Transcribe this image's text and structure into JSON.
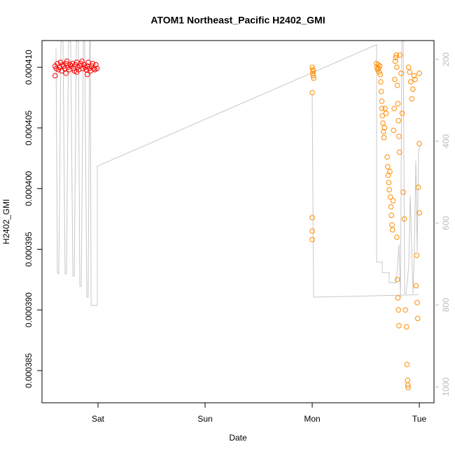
{
  "chart_data": {
    "type": "scatter",
    "title": "ATOM1 Northeast_Pacific H2402_GMI",
    "x_label": "Date",
    "y_label": "H2402_GMI",
    "xlim": [
      -0.523,
      3.137
    ],
    "xticks": [
      {
        "value": 0,
        "label": "Sat"
      },
      {
        "value": 1,
        "label": "Sun"
      },
      {
        "value": 2,
        "label": "Mon"
      },
      {
        "value": 3,
        "label": "Tue"
      }
    ],
    "ylim": [
      0.00038235,
      0.0004122
    ],
    "yticks": [
      0.000385,
      {
        "value": 0.00039,
        "label": "0.000390"
      },
      0.000395,
      {
        "value": 0.0004,
        "label": "0.000400"
      },
      0.000405,
      {
        "value": 0.00041,
        "label": "0.000410"
      }
    ],
    "y2lim": [
      154,
      1039
    ],
    "y2_reversed": true,
    "y2ticks": [
      200,
      400,
      600,
      800,
      1000
    ],
    "y2_color": "#bbbbbb",
    "series": [
      {
        "name": "red",
        "color": "#ff0000",
        "x": [
          -0.4,
          -0.39,
          -0.38,
          -0.37,
          -0.36,
          -0.35,
          -0.34,
          -0.33,
          -0.32,
          -0.31,
          -0.3,
          -0.29,
          -0.28,
          -0.27,
          -0.26,
          -0.25,
          -0.24,
          -0.23,
          -0.22,
          -0.21,
          -0.2,
          -0.19,
          -0.18,
          -0.17,
          -0.16,
          -0.15,
          -0.14,
          -0.13,
          -0.12,
          -0.11,
          -0.1,
          -0.09,
          -0.08,
          -0.07,
          -0.06,
          -0.05,
          -0.04,
          -0.03,
          -0.02,
          -0.01,
          -0.4,
          -0.3,
          -0.2,
          -0.1
        ],
        "values": [
          0.0004101,
          0.0004099,
          0.0004103,
          0.0004098,
          0.00041,
          0.0004104,
          0.0004097,
          0.0004102,
          0.0004101,
          0.0004099,
          0.0004103,
          0.0004105,
          0.00041,
          0.0004098,
          0.0004102,
          0.0004101,
          0.0004103,
          0.0004099,
          0.0004097,
          0.0004102,
          0.0004104,
          0.00041,
          0.0004098,
          0.0004101,
          0.0004103,
          0.0004105,
          0.0004099,
          0.0004102,
          0.00041,
          0.0004098,
          0.0004101,
          0.0004104,
          0.0004099,
          0.0004097,
          0.0004101,
          0.0004103,
          0.0004099,
          0.0004098,
          0.0004102,
          0.0004099,
          0.0004093,
          0.0004095,
          0.0004096,
          0.0004094
        ]
      },
      {
        "name": "orange",
        "color": "#ff8c00",
        "x": [
          2.0,
          2.005,
          2.01,
          2.005,
          2.01,
          2.013,
          2.0,
          2.0,
          2.0,
          2.0,
          2.6,
          2.605,
          2.61,
          2.615,
          2.62,
          2.625,
          2.63,
          2.635,
          2.64,
          2.645,
          2.65,
          2.65,
          2.655,
          2.66,
          2.665,
          2.67,
          2.675,
          2.68,
          2.69,
          2.7,
          2.705,
          2.71,
          2.715,
          2.72,
          2.725,
          2.73,
          2.735,
          2.74,
          2.745,
          2.75,
          2.755,
          2.76,
          2.765,
          2.77,
          2.775,
          2.78,
          2.785,
          2.79,
          2.795,
          2.8,
          2.805,
          2.81,
          2.815,
          2.79,
          2.795,
          2.8,
          2.805,
          2.81,
          2.82,
          2.83,
          2.84,
          2.85,
          2.86,
          2.87,
          2.88,
          2.885,
          2.89,
          2.893,
          2.895,
          2.9,
          2.91,
          2.92,
          2.93,
          2.94,
          2.95,
          2.96,
          2.97,
          2.975,
          2.98,
          2.985,
          2.99,
          3.0,
          3.0,
          3.0
        ],
        "values": [
          0.00041,
          0.0004098,
          0.0004097,
          0.0004095,
          0.0004093,
          0.0004091,
          0.0004079,
          0.0003976,
          0.0003965,
          0.0003958,
          0.0004103,
          0.00041,
          0.0004098,
          0.0004102,
          0.0004099,
          0.0004096,
          0.0004101,
          0.0004094,
          0.0004088,
          0.000408,
          0.0004072,
          0.0004066,
          0.000406,
          0.0004054,
          0.0004047,
          0.0004042,
          0.000405,
          0.0004066,
          0.0004062,
          0.0004026,
          0.0004018,
          0.0004011,
          0.0004005,
          0.0003999,
          0.0004014,
          0.0003993,
          0.0003985,
          0.0003978,
          0.000397,
          0.0003966,
          0.000399,
          0.0004048,
          0.0004066,
          0.000409,
          0.0004105,
          0.0004108,
          0.000411,
          0.00041,
          0.0004085,
          0.000407,
          0.0004056,
          0.0004043,
          0.000403,
          0.000396,
          0.0003925,
          0.000391,
          0.00039,
          0.0003887,
          0.000411,
          0.0004095,
          0.0004062,
          0.0003997,
          0.0003975,
          0.00039,
          0.0003886,
          0.0003855,
          0.0003842,
          0.0003838,
          0.0003836,
          0.00041,
          0.0004096,
          0.0004088,
          0.0004074,
          0.0004082,
          0.0004093,
          0.000409,
          0.000392,
          0.0003945,
          0.0003906,
          0.0003893,
          0.0004001,
          0.0004037,
          0.000398,
          0.0004095
        ]
      },
      {
        "name": "grey",
        "type": "line",
        "axis": "y2",
        "color": "#c8c8c8",
        "x": [
          -0.392,
          -0.379,
          -0.366,
          -0.346,
          -0.327,
          -0.307,
          -0.294,
          -0.275,
          -0.255,
          -0.235,
          -0.222,
          -0.203,
          -0.183,
          -0.17,
          -0.157,
          -0.137,
          -0.124,
          -0.105,
          -0.092,
          -0.078,
          -0.072,
          -0.065,
          -0.007,
          -0.007,
          2.601,
          2.601,
          2.654,
          2.654,
          2.719,
          2.719,
          2.784,
          2.81,
          2.824,
          2.837,
          2.85,
          2.863,
          2.876,
          2.902,
          2.915,
          2.941,
          2.954,
          2.967,
          2.98,
          2.993,
          3.007,
          null,
          2.0,
          2.013,
          2.993
        ],
        "values": [
          174,
          721,
          724,
          156,
          156,
          724,
          724,
          156,
          156,
          729,
          729,
          156,
          156,
          755,
          755,
          156,
          156,
          781,
          781,
          156,
          156,
          801,
          801,
          461,
          164,
          695,
          695,
          721,
          721,
          746,
          746,
          652,
          781,
          156,
          156,
          772,
          772,
          704,
          533,
          772,
          670,
          448,
          670,
          422,
          413,
          null,
          282,
          781,
          775
        ]
      }
    ]
  }
}
